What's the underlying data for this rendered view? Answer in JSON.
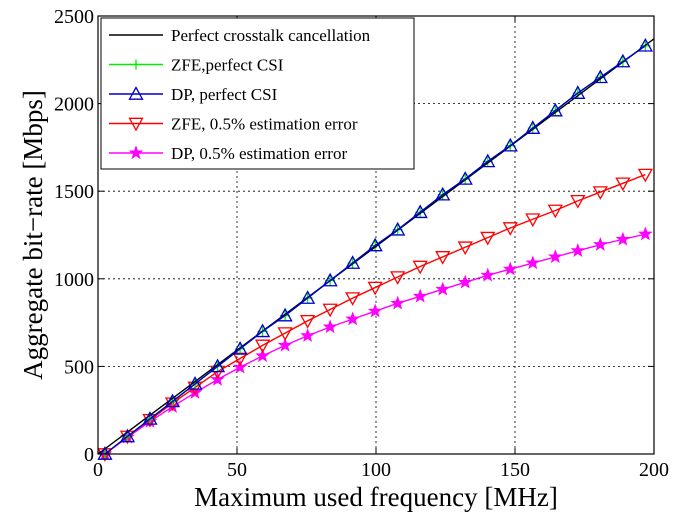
{
  "chart_data": {
    "type": "line",
    "title": "",
    "xlabel": "Maximum used frequency [MHz]",
    "ylabel": "Aggregate bit−rate [Mbps]",
    "xlim": [
      0,
      200
    ],
    "ylim": [
      0,
      2500
    ],
    "xticks": [
      0,
      50,
      100,
      150,
      200
    ],
    "yticks": [
      0,
      500,
      1000,
      1500,
      2000,
      2500
    ],
    "xtick_labels": [
      "0",
      "50",
      "100",
      "150",
      "200"
    ],
    "ytick_labels": [
      "0",
      "500",
      "1000",
      "1500",
      "2000",
      "2500"
    ],
    "grid": true,
    "legend_position": "top-left",
    "x": [
      2.5,
      10.6,
      18.7,
      26.8,
      34.9,
      43.0,
      51.1,
      59.2,
      67.3,
      75.4,
      83.5,
      91.6,
      99.7,
      107.8,
      115.9,
      124.0,
      132.1,
      140.2,
      148.3,
      156.4,
      164.5,
      172.6,
      180.7,
      188.8,
      196.9
    ],
    "series": [
      {
        "name": "Perfect crosstalk cancellation",
        "color": "#000000",
        "marker": "none",
        "x": [
          0,
          200
        ],
        "values": [
          0,
          2370
        ]
      },
      {
        "name": "ZFE,perfect CSI",
        "color": "#00ee00",
        "marker": "plus",
        "values": [
          0,
          100,
          200,
          300,
          400,
          500,
          600,
          700,
          790,
          890,
          990,
          1090,
          1190,
          1280,
          1380,
          1480,
          1570,
          1670,
          1760,
          1860,
          1960,
          2060,
          2150,
          2240,
          2330
        ]
      },
      {
        "name": "DP, perfect CSI",
        "color": "#0000cc",
        "marker": "triangle-up",
        "values": [
          0,
          100,
          200,
          300,
          400,
          500,
          600,
          700,
          790,
          890,
          990,
          1090,
          1190,
          1280,
          1380,
          1480,
          1570,
          1670,
          1760,
          1860,
          1960,
          2060,
          2150,
          2240,
          2330
        ]
      },
      {
        "name": "ZFE, 0.5% estimation error",
        "color": "#ff0000",
        "marker": "triangle-down",
        "values": [
          0,
          100,
          195,
          290,
          380,
          470,
          545,
          620,
          690,
          760,
          825,
          890,
          950,
          1010,
          1070,
          1125,
          1180,
          1235,
          1290,
          1340,
          1390,
          1445,
          1495,
          1545,
          1595
        ]
      },
      {
        "name": "DP, 0.5% estimation error",
        "color": "#ff00ff",
        "marker": "star",
        "values": [
          0,
          95,
          185,
          270,
          350,
          425,
          495,
          560,
          620,
          675,
          725,
          770,
          815,
          860,
          900,
          940,
          980,
          1020,
          1055,
          1090,
          1125,
          1160,
          1195,
          1225,
          1255
        ]
      }
    ]
  }
}
